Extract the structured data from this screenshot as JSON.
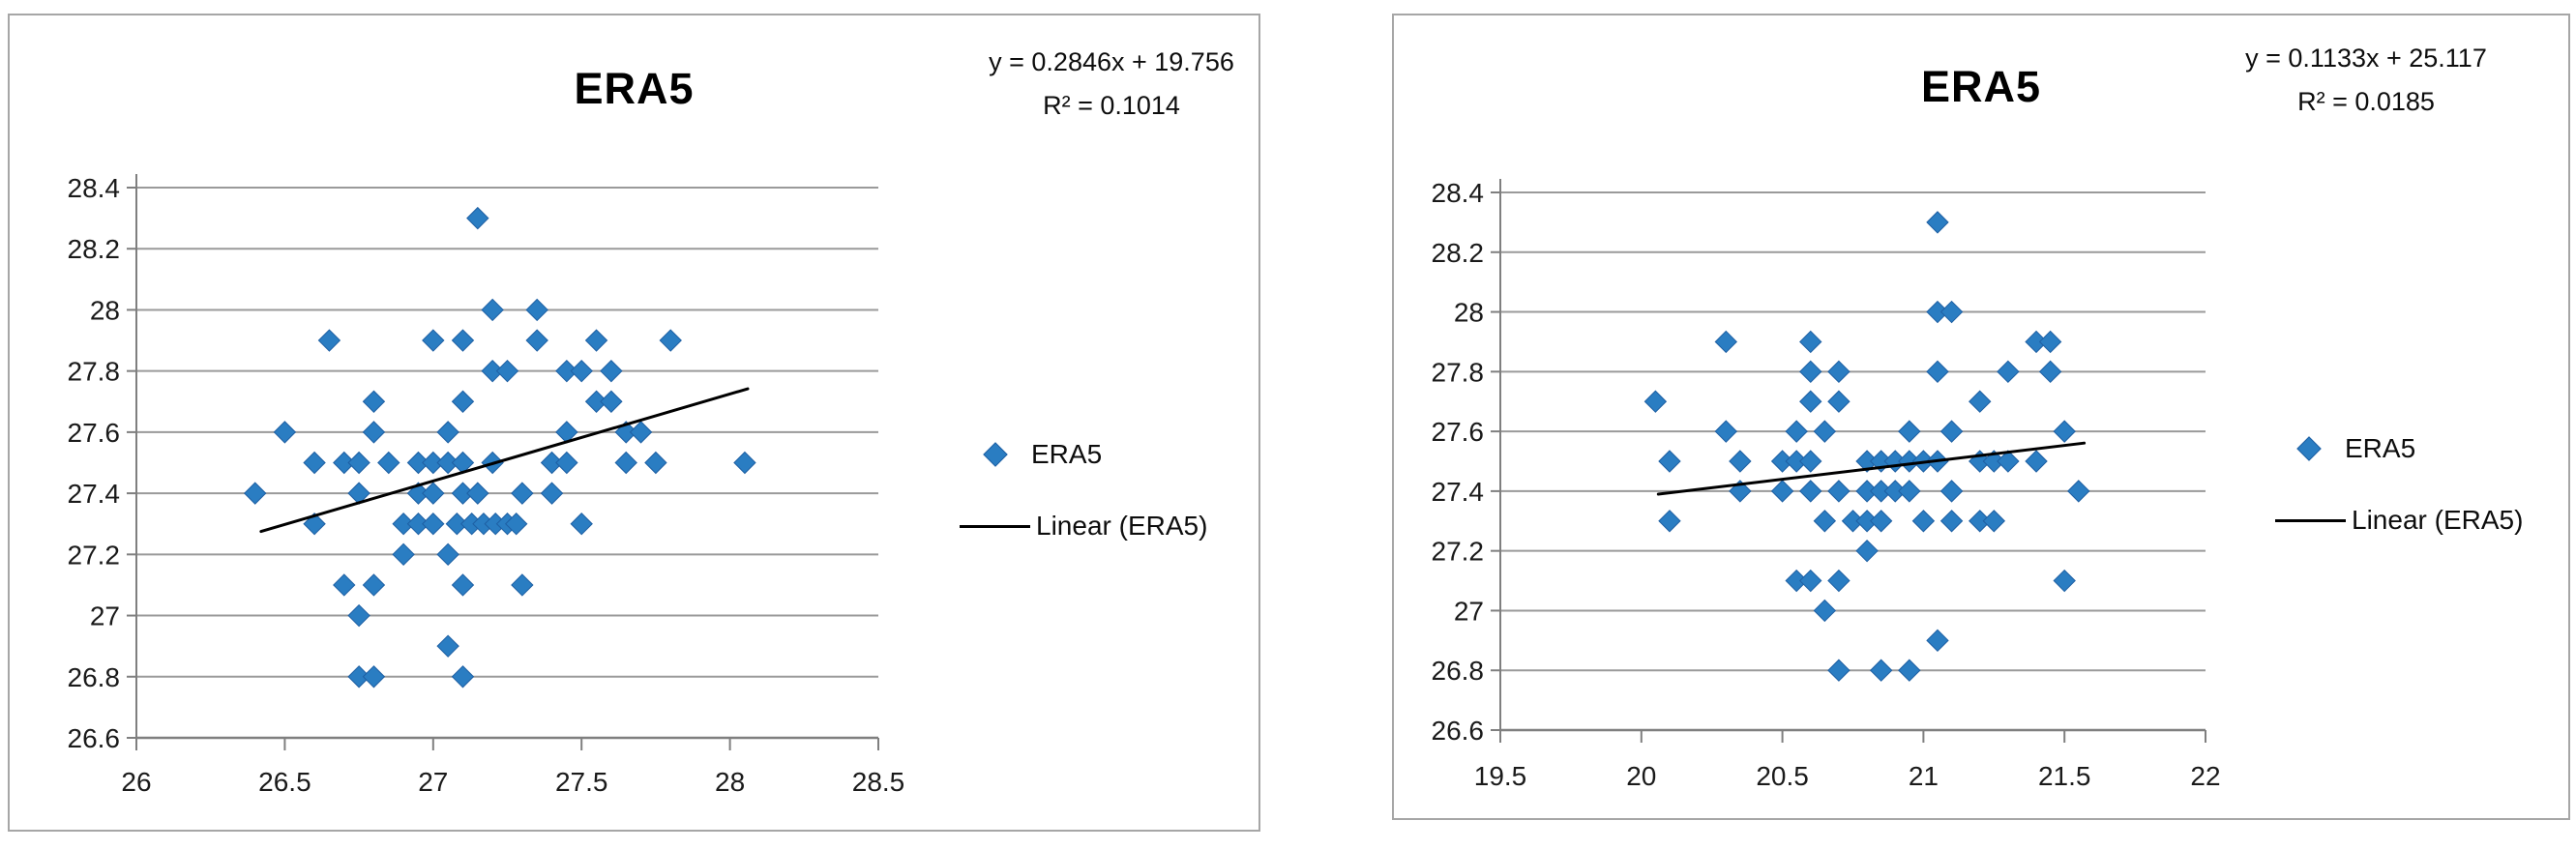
{
  "colors": {
    "marker": "#2a7dc2",
    "marker_edge": "#1e5fa3",
    "trendline": "#000000",
    "grid": "#9a9a9a",
    "axis": "#7f7f7f",
    "panel_border": "#a6a6a6",
    "text": "#1a1a1a"
  },
  "chart_data": [
    {
      "type": "scatter",
      "title": "ERA5",
      "equation": "y = 0.2846x + 19.756",
      "r_squared": "R² = 0.1014",
      "legend": {
        "series": "ERA5",
        "trend": "Linear (ERA5)"
      },
      "xlim": [
        26,
        28.5
      ],
      "ylim": [
        26.6,
        28.4
      ],
      "grid": true,
      "legend_position": "right",
      "x_ticks": [
        [
          26,
          "26"
        ],
        [
          26.5,
          "26.5"
        ],
        [
          27,
          "27"
        ],
        [
          27.5,
          "27.5"
        ],
        [
          28,
          "28"
        ],
        [
          28.5,
          "28.5"
        ]
      ],
      "y_ticks": [
        [
          26.6,
          "26.6"
        ],
        [
          26.8,
          "26.8"
        ],
        [
          27,
          "27"
        ],
        [
          27.2,
          "27.2"
        ],
        [
          27.4,
          "27.4"
        ],
        [
          27.6,
          "27.6"
        ],
        [
          27.8,
          "27.8"
        ],
        [
          28,
          "28"
        ],
        [
          28.2,
          "28.2"
        ],
        [
          28.4,
          "28.4"
        ]
      ],
      "trendline": {
        "slope": 0.2846,
        "intercept": 19.756,
        "x_start": 26.42,
        "x_end": 28.06
      },
      "points": [
        [
          27.15,
          28.3
        ],
        [
          27.2,
          28.0
        ],
        [
          27.35,
          28.0
        ],
        [
          26.65,
          27.9
        ],
        [
          27.0,
          27.9
        ],
        [
          27.1,
          27.9
        ],
        [
          27.35,
          27.9
        ],
        [
          27.55,
          27.9
        ],
        [
          27.8,
          27.9
        ],
        [
          27.2,
          27.8
        ],
        [
          27.25,
          27.8
        ],
        [
          27.45,
          27.8
        ],
        [
          27.5,
          27.8
        ],
        [
          27.6,
          27.8
        ],
        [
          26.8,
          27.7
        ],
        [
          27.1,
          27.7
        ],
        [
          27.55,
          27.7
        ],
        [
          27.6,
          27.7
        ],
        [
          26.5,
          27.6
        ],
        [
          26.8,
          27.6
        ],
        [
          27.05,
          27.6
        ],
        [
          27.45,
          27.6
        ],
        [
          27.65,
          27.6
        ],
        [
          27.7,
          27.6
        ],
        [
          26.6,
          27.5
        ],
        [
          26.7,
          27.5
        ],
        [
          26.75,
          27.5
        ],
        [
          26.85,
          27.5
        ],
        [
          26.95,
          27.5
        ],
        [
          27.0,
          27.5
        ],
        [
          27.05,
          27.5
        ],
        [
          27.1,
          27.5
        ],
        [
          27.2,
          27.5
        ],
        [
          27.4,
          27.5
        ],
        [
          27.45,
          27.5
        ],
        [
          27.65,
          27.5
        ],
        [
          27.75,
          27.5
        ],
        [
          28.05,
          27.5
        ],
        [
          26.4,
          27.4
        ],
        [
          26.75,
          27.4
        ],
        [
          26.95,
          27.4
        ],
        [
          27.0,
          27.4
        ],
        [
          27.1,
          27.4
        ],
        [
          27.15,
          27.4
        ],
        [
          27.3,
          27.4
        ],
        [
          27.4,
          27.4
        ],
        [
          26.6,
          27.3
        ],
        [
          26.9,
          27.3
        ],
        [
          26.95,
          27.3
        ],
        [
          27.0,
          27.3
        ],
        [
          27.08,
          27.3
        ],
        [
          27.13,
          27.3
        ],
        [
          27.17,
          27.3
        ],
        [
          27.21,
          27.3
        ],
        [
          27.25,
          27.3
        ],
        [
          27.28,
          27.3
        ],
        [
          27.5,
          27.3
        ],
        [
          26.9,
          27.2
        ],
        [
          27.05,
          27.2
        ],
        [
          26.7,
          27.1
        ],
        [
          26.8,
          27.1
        ],
        [
          27.1,
          27.1
        ],
        [
          27.3,
          27.1
        ],
        [
          26.75,
          27.0
        ],
        [
          27.05,
          26.9
        ],
        [
          26.75,
          26.8
        ],
        [
          26.8,
          26.8
        ],
        [
          27.1,
          26.8
        ]
      ]
    },
    {
      "type": "scatter",
      "title": "ERA5",
      "equation": "y = 0.1133x + 25.117",
      "r_squared": "R² = 0.0185",
      "legend": {
        "series": "ERA5",
        "trend": "Linear (ERA5)"
      },
      "xlim": [
        19.5,
        22
      ],
      "ylim": [
        26.6,
        28.4
      ],
      "grid": true,
      "legend_position": "right",
      "x_ticks": [
        [
          19.5,
          "19.5"
        ],
        [
          20,
          "20"
        ],
        [
          20.5,
          "20.5"
        ],
        [
          21,
          "21"
        ],
        [
          21.5,
          "21.5"
        ],
        [
          22,
          "22"
        ]
      ],
      "y_ticks": [
        [
          26.6,
          "26.6"
        ],
        [
          26.8,
          "26.8"
        ],
        [
          27,
          "27"
        ],
        [
          27.2,
          "27.2"
        ],
        [
          27.4,
          "27.4"
        ],
        [
          27.6,
          "27.6"
        ],
        [
          27.8,
          "27.8"
        ],
        [
          28,
          "28"
        ],
        [
          28.2,
          "28.2"
        ],
        [
          28.4,
          "28.4"
        ]
      ],
      "trendline": {
        "slope": 0.1133,
        "intercept": 25.117,
        "x_start": 20.06,
        "x_end": 21.57
      },
      "points": [
        [
          21.05,
          28.3
        ],
        [
          21.05,
          28.0
        ],
        [
          21.1,
          28.0
        ],
        [
          20.3,
          27.9
        ],
        [
          20.6,
          27.9
        ],
        [
          21.4,
          27.9
        ],
        [
          21.45,
          27.9
        ],
        [
          20.6,
          27.8
        ],
        [
          20.7,
          27.8
        ],
        [
          21.05,
          27.8
        ],
        [
          21.3,
          27.8
        ],
        [
          21.45,
          27.8
        ],
        [
          20.05,
          27.7
        ],
        [
          20.6,
          27.7
        ],
        [
          20.7,
          27.7
        ],
        [
          21.2,
          27.7
        ],
        [
          20.3,
          27.6
        ],
        [
          20.55,
          27.6
        ],
        [
          20.65,
          27.6
        ],
        [
          20.95,
          27.6
        ],
        [
          21.1,
          27.6
        ],
        [
          21.5,
          27.6
        ],
        [
          20.1,
          27.5
        ],
        [
          20.35,
          27.5
        ],
        [
          20.5,
          27.5
        ],
        [
          20.55,
          27.5
        ],
        [
          20.6,
          27.5
        ],
        [
          20.8,
          27.5
        ],
        [
          20.85,
          27.5
        ],
        [
          20.9,
          27.5
        ],
        [
          20.95,
          27.5
        ],
        [
          21.0,
          27.5
        ],
        [
          21.05,
          27.5
        ],
        [
          21.2,
          27.5
        ],
        [
          21.25,
          27.5
        ],
        [
          21.3,
          27.5
        ],
        [
          21.4,
          27.5
        ],
        [
          20.35,
          27.4
        ],
        [
          20.5,
          27.4
        ],
        [
          20.6,
          27.4
        ],
        [
          20.7,
          27.4
        ],
        [
          20.8,
          27.4
        ],
        [
          20.85,
          27.4
        ],
        [
          20.9,
          27.4
        ],
        [
          20.95,
          27.4
        ],
        [
          21.1,
          27.4
        ],
        [
          21.55,
          27.4
        ],
        [
          20.1,
          27.3
        ],
        [
          20.65,
          27.3
        ],
        [
          20.75,
          27.3
        ],
        [
          20.8,
          27.3
        ],
        [
          20.85,
          27.3
        ],
        [
          21.0,
          27.3
        ],
        [
          21.1,
          27.3
        ],
        [
          21.2,
          27.3
        ],
        [
          21.25,
          27.3
        ],
        [
          20.8,
          27.2
        ],
        [
          20.55,
          27.1
        ],
        [
          20.6,
          27.1
        ],
        [
          20.7,
          27.1
        ],
        [
          21.5,
          27.1
        ],
        [
          20.65,
          27.0
        ],
        [
          21.05,
          26.9
        ],
        [
          20.7,
          26.8
        ],
        [
          20.85,
          26.8
        ],
        [
          20.95,
          26.8
        ]
      ]
    }
  ]
}
